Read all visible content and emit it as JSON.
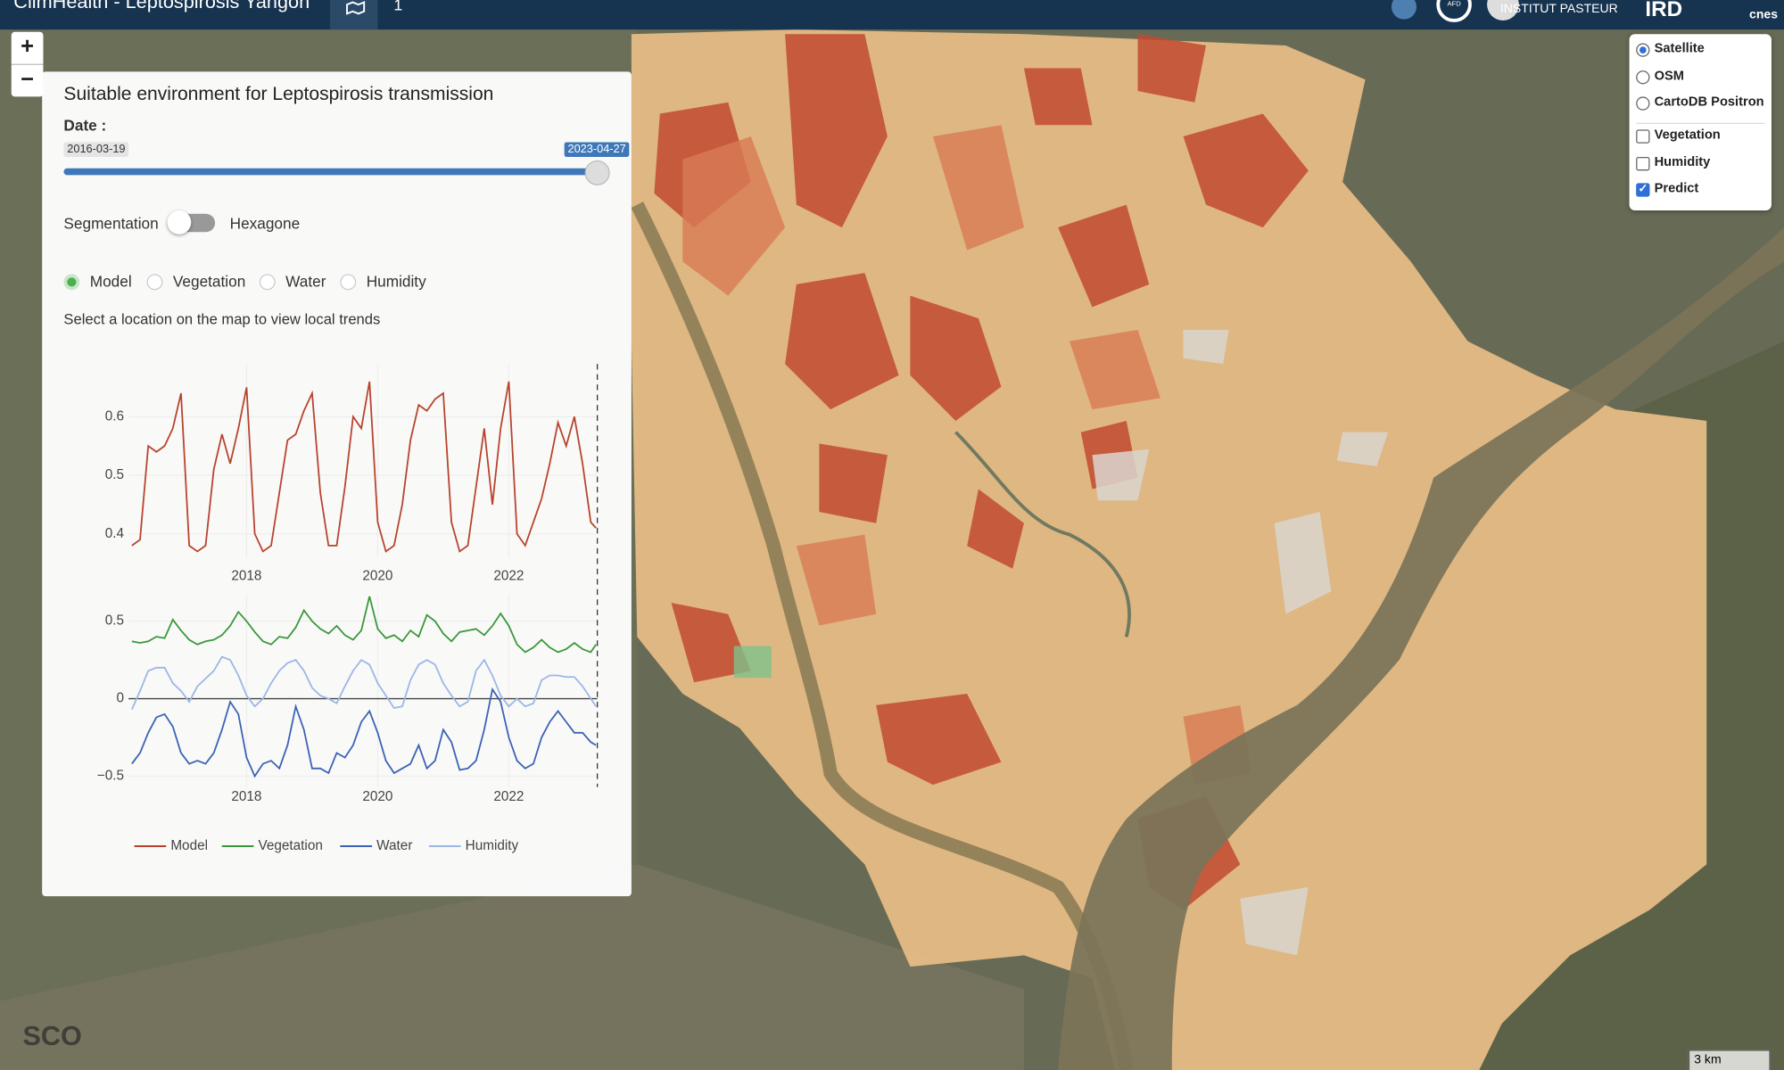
{
  "header": {
    "title": "ClimHealth - Leptospirosis Yangon",
    "tab_badge": "1",
    "logos": [
      "AFD",
      "INSTITUT PASTEUR",
      "cnes"
    ]
  },
  "map_controls": {
    "zoom_in": "+",
    "zoom_out": "−",
    "scale": "3 km",
    "watermark": "SCO"
  },
  "layers": {
    "base": [
      {
        "label": "Satellite",
        "selected": true
      },
      {
        "label": "OSM",
        "selected": false
      },
      {
        "label": "CartoDB Positron",
        "selected": false
      }
    ],
    "overlays": [
      {
        "label": "Vegetation",
        "checked": false
      },
      {
        "label": "Humidity",
        "checked": false
      },
      {
        "label": "Predict",
        "checked": true
      }
    ]
  },
  "panel": {
    "title": "Suitable environment for Leptospirosis transmission",
    "date_label": "Date :",
    "slider": {
      "min_label": "2016-03-19",
      "value_label": "2023-04-27"
    },
    "toggle": {
      "left": "Segmentation",
      "right": "Hexagone",
      "on": false
    },
    "variables": [
      {
        "label": "Model",
        "selected": true
      },
      {
        "label": "Vegetation",
        "selected": false
      },
      {
        "label": "Water",
        "selected": false
      },
      {
        "label": "Humidity",
        "selected": false
      }
    ],
    "hint": "Select a location on the map to view local trends"
  },
  "chart_data": [
    {
      "type": "line",
      "x": [
        2016.25,
        2016.375,
        2016.5,
        2016.625,
        2016.75,
        2016.875,
        2017,
        2017.125,
        2017.25,
        2017.375,
        2017.5,
        2017.625,
        2017.75,
        2017.875,
        2018,
        2018.125,
        2018.25,
        2018.375,
        2018.5,
        2018.625,
        2018.75,
        2018.875,
        2019,
        2019.125,
        2019.25,
        2019.375,
        2019.5,
        2019.625,
        2019.75,
        2019.875,
        2020,
        2020.125,
        2020.25,
        2020.375,
        2020.5,
        2020.625,
        2020.75,
        2020.875,
        2021,
        2021.125,
        2021.25,
        2021.375,
        2021.5,
        2021.625,
        2021.75,
        2021.875,
        2022,
        2022.125,
        2022.25,
        2022.375,
        2022.5,
        2022.625,
        2022.75,
        2022.875,
        2023,
        2023.125,
        2023.25,
        2023.33
      ],
      "xlim": [
        2016.2,
        2023.35
      ],
      "xticks": [
        2018,
        2020,
        2022
      ],
      "ylim": [
        0.36,
        0.69
      ],
      "yticks": [
        0.4,
        0.5,
        0.6
      ],
      "grid": true,
      "series": [
        {
          "name": "Model",
          "color": "#b8432d",
          "values": [
            0.38,
            0.39,
            0.55,
            0.54,
            0.55,
            0.58,
            0.64,
            0.38,
            0.37,
            0.38,
            0.51,
            0.57,
            0.52,
            0.58,
            0.65,
            0.4,
            0.37,
            0.38,
            0.47,
            0.56,
            0.57,
            0.61,
            0.64,
            0.47,
            0.38,
            0.38,
            0.48,
            0.6,
            0.58,
            0.66,
            0.42,
            0.37,
            0.38,
            0.45,
            0.56,
            0.62,
            0.61,
            0.63,
            0.64,
            0.42,
            0.37,
            0.38,
            0.48,
            0.58,
            0.45,
            0.58,
            0.66,
            0.4,
            0.38,
            0.42,
            0.46,
            0.52,
            0.59,
            0.55,
            0.6,
            0.52,
            0.42,
            0.41
          ]
        }
      ]
    },
    {
      "type": "line",
      "x": [
        2016.25,
        2016.375,
        2016.5,
        2016.625,
        2016.75,
        2016.875,
        2017,
        2017.125,
        2017.25,
        2017.375,
        2017.5,
        2017.625,
        2017.75,
        2017.875,
        2018,
        2018.125,
        2018.25,
        2018.375,
        2018.5,
        2018.625,
        2018.75,
        2018.875,
        2019,
        2019.125,
        2019.25,
        2019.375,
        2019.5,
        2019.625,
        2019.75,
        2019.875,
        2020,
        2020.125,
        2020.25,
        2020.375,
        2020.5,
        2020.625,
        2020.75,
        2020.875,
        2021,
        2021.125,
        2021.25,
        2021.375,
        2021.5,
        2021.625,
        2021.75,
        2021.875,
        2022,
        2022.125,
        2022.25,
        2022.375,
        2022.5,
        2022.625,
        2022.75,
        2022.875,
        2023,
        2023.125,
        2023.25,
        2023.33
      ],
      "xlim": [
        2016.2,
        2023.35
      ],
      "xticks": [
        2018,
        2020,
        2022
      ],
      "ylim": [
        -0.57,
        0.67
      ],
      "yticks": [
        {
          "value": -0.5,
          "label": "−0.5"
        },
        0,
        0.5
      ],
      "grid": true,
      "zero_line": true,
      "series": [
        {
          "name": "Vegetation",
          "color": "#3a973a",
          "values": [
            0.37,
            0.36,
            0.37,
            0.4,
            0.39,
            0.51,
            0.44,
            0.38,
            0.35,
            0.37,
            0.38,
            0.41,
            0.47,
            0.56,
            0.5,
            0.43,
            0.37,
            0.35,
            0.4,
            0.39,
            0.46,
            0.57,
            0.5,
            0.45,
            0.42,
            0.47,
            0.41,
            0.38,
            0.44,
            0.66,
            0.45,
            0.39,
            0.41,
            0.37,
            0.44,
            0.4,
            0.54,
            0.5,
            0.42,
            0.37,
            0.43,
            0.44,
            0.45,
            0.41,
            0.47,
            0.55,
            0.47,
            0.35,
            0.3,
            0.33,
            0.38,
            0.33,
            0.3,
            0.32,
            0.36,
            0.32,
            0.3,
            0.35
          ]
        },
        {
          "name": "Water",
          "color": "#3a62b5",
          "values": [
            -0.42,
            -0.35,
            -0.22,
            -0.12,
            -0.1,
            -0.18,
            -0.35,
            -0.42,
            -0.4,
            -0.42,
            -0.35,
            -0.2,
            -0.02,
            -0.1,
            -0.38,
            -0.5,
            -0.42,
            -0.4,
            -0.45,
            -0.3,
            -0.05,
            -0.2,
            -0.45,
            -0.45,
            -0.48,
            -0.35,
            -0.38,
            -0.3,
            -0.15,
            -0.08,
            -0.22,
            -0.4,
            -0.48,
            -0.45,
            -0.42,
            -0.3,
            -0.45,
            -0.4,
            -0.2,
            -0.28,
            -0.46,
            -0.45,
            -0.4,
            -0.2,
            0.06,
            -0.02,
            -0.25,
            -0.4,
            -0.45,
            -0.42,
            -0.25,
            -0.15,
            -0.08,
            -0.15,
            -0.22,
            -0.22,
            -0.28,
            -0.3
          ]
        },
        {
          "name": "Humidity",
          "color": "#9cb6e6",
          "values": [
            -0.07,
            0.05,
            0.18,
            0.2,
            0.2,
            0.1,
            0.05,
            -0.02,
            0.08,
            0.13,
            0.18,
            0.27,
            0.25,
            0.15,
            0.02,
            -0.05,
            0,
            0.1,
            0.18,
            0.23,
            0.25,
            0.18,
            0.07,
            0.02,
            0,
            -0.03,
            0.08,
            0.18,
            0.25,
            0.22,
            0.1,
            0.02,
            -0.06,
            -0.05,
            0.12,
            0.22,
            0.25,
            0.22,
            0.1,
            0.02,
            -0.05,
            -0.02,
            0.18,
            0.25,
            0.15,
            0.02,
            -0.05,
            0,
            -0.05,
            -0.03,
            0.12,
            0.15,
            0.15,
            0.14,
            0.14,
            0.08,
            0,
            -0.05
          ]
        }
      ]
    }
  ]
}
